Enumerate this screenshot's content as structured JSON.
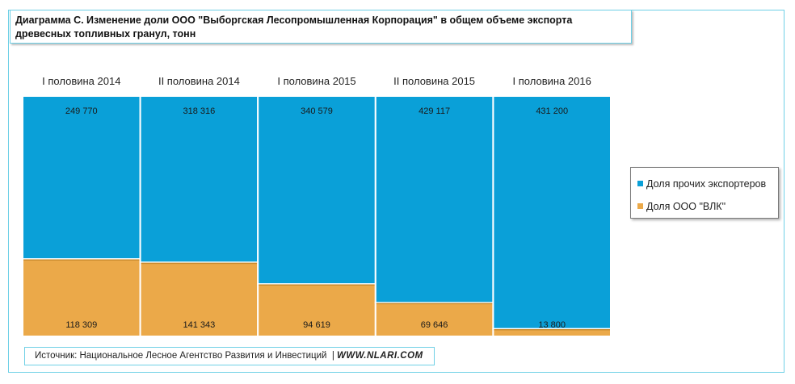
{
  "title": "Диаграмма С.  Изменение доли ООО \"Выборгская Лесопромышленная Корпорация\" в общем объеме экспорта  древесных топливных гранул, тонн",
  "source": {
    "text": "Источник: Национальное  Лесное Агентство  Развития  и Инвестиций",
    "url": "WWW.NLARI.COM"
  },
  "colors": {
    "others": "#0aa0d8",
    "vlk": "#eba949",
    "frame": "#6fd0e6"
  },
  "chart_data": {
    "type": "bar",
    "stacked": "percent",
    "categories": [
      "I половина 2014",
      "II половина 2014",
      "I половина 2015",
      "II половина 2015",
      "I половина 2016"
    ],
    "series": [
      {
        "name": "Доля прочих экспортеров",
        "values": [
          249770,
          318316,
          340579,
          429117,
          431200
        ],
        "labels": [
          "249 770",
          "318 316",
          "340 579",
          "429 117",
          "431 200"
        ]
      },
      {
        "name": "Доля ООО \"ВЛК\"",
        "values": [
          118309,
          141343,
          94619,
          69646,
          13800
        ],
        "labels": [
          "118 309",
          "141 343",
          "94 619",
          "69 646",
          "13 800"
        ]
      }
    ],
    "legend_position": "right"
  }
}
